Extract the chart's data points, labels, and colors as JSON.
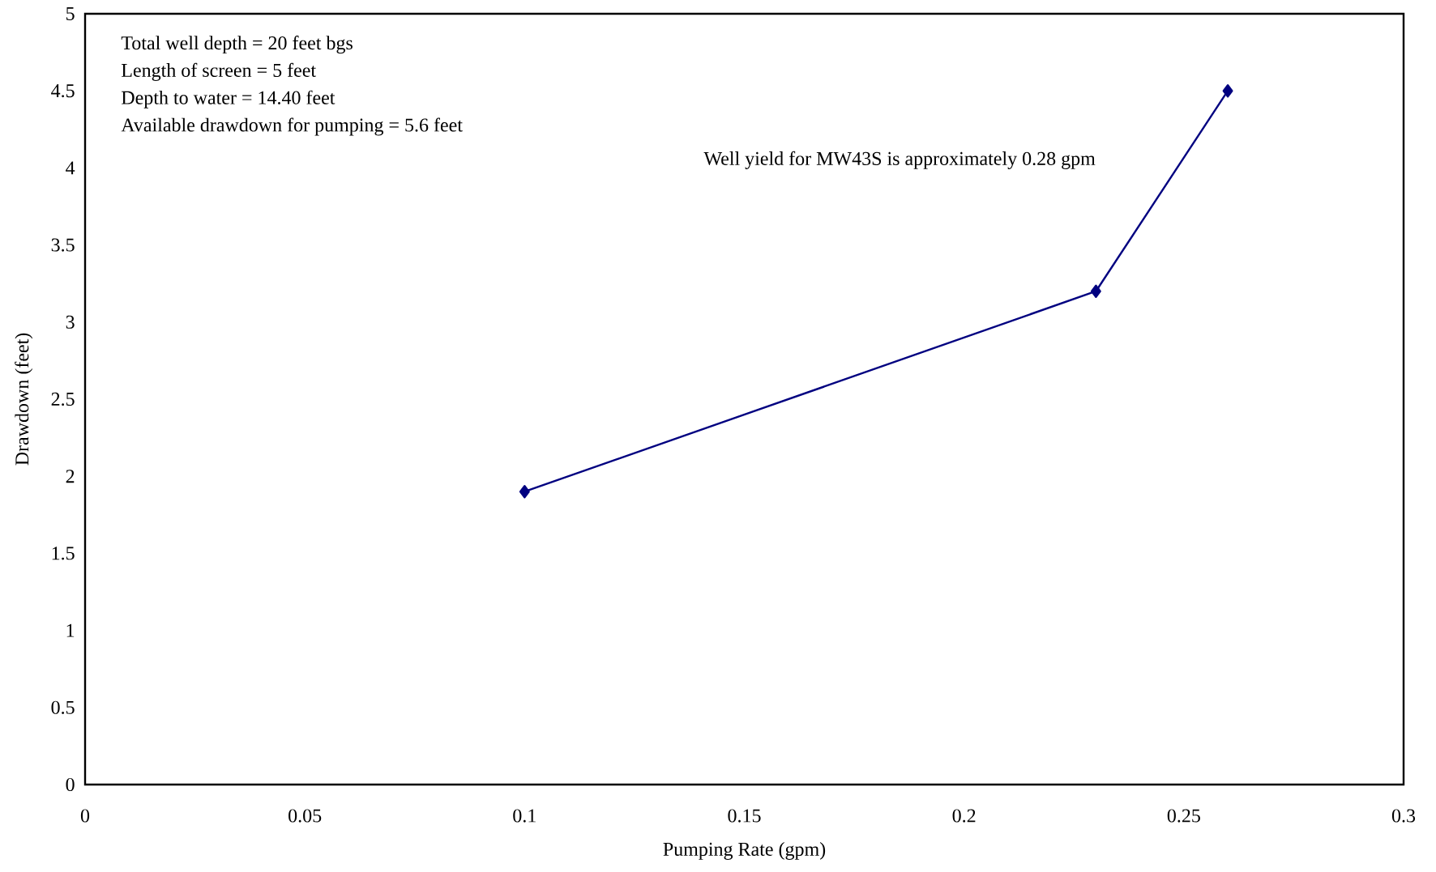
{
  "chart_data": {
    "type": "line",
    "xlabel": "Pumping Rate (gpm)",
    "ylabel": "Drawdown (feet)",
    "x": [
      0.1,
      0.23,
      0.26
    ],
    "series": [
      {
        "color": "#000080",
        "values": [
          1.9,
          3.2,
          4.5
        ]
      }
    ],
    "marker": "diamond",
    "line_style": "solid",
    "xlim": [
      0,
      0.3
    ],
    "xticks": [
      0,
      0.05,
      0.1,
      0.15,
      0.2,
      0.25,
      0.3
    ],
    "ylim": [
      0,
      5
    ],
    "yticks": [
      0,
      0.5,
      1,
      1.5,
      2,
      2.5,
      3,
      3.5,
      4,
      4.5,
      5
    ],
    "annotations": [
      "Total well depth = 20 feet bgs",
      "Length of screen = 5 feet",
      "Depth to water = 14.40 feet",
      "Available drawdown for pumping = 5.6 feet",
      "Well yield for MW43S is approximately 0.28 gpm"
    ]
  }
}
